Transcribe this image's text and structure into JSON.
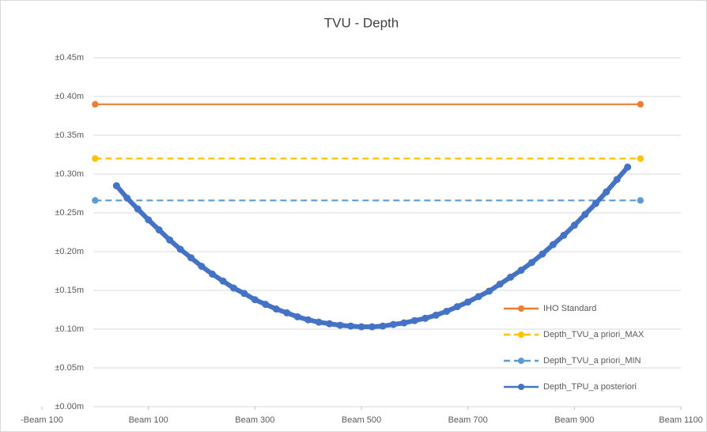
{
  "chart_data": {
    "type": "scatter",
    "title": "TVU - Depth",
    "xlim": [
      -100,
      1100
    ],
    "xticks": [
      {
        "value": -100,
        "label": "-Beam 100"
      },
      {
        "value": 100,
        "label": "Beam 100"
      },
      {
        "value": 300,
        "label": "Beam 300"
      },
      {
        "value": 500,
        "label": "Beam 500"
      },
      {
        "value": 700,
        "label": "Beam 700"
      },
      {
        "value": 900,
        "label": "Beam 900"
      },
      {
        "value": 1100,
        "label": "Beam 1100"
      }
    ],
    "ylim": [
      0,
      0.45
    ],
    "yticks": [
      {
        "value": 0,
        "label": "±0.00m"
      },
      {
        "value": 0.05,
        "label": "±0.05m"
      },
      {
        "value": 0.1,
        "label": "±0.10m"
      },
      {
        "value": 0.15,
        "label": "±0.15m"
      },
      {
        "value": 0.2,
        "label": "±0.20m"
      },
      {
        "value": 0.25,
        "label": "±0.25m"
      },
      {
        "value": 0.3,
        "label": "±0.30m"
      },
      {
        "value": 0.35,
        "label": "±0.35m"
      },
      {
        "value": 0.4,
        "label": "±0.40m"
      },
      {
        "value": 0.45,
        "label": "±0.45m"
      }
    ],
    "grid": true,
    "legend": "lower right",
    "series": [
      {
        "name": "IHO Standard",
        "color": "#ed7d31",
        "dashed": false,
        "x": [
          0,
          1024
        ],
        "values": [
          0.39,
          0.39
        ]
      },
      {
        "name": "Depth_TVU_a priori_MAX",
        "color": "#ffc000",
        "dashed": true,
        "x": [
          0,
          1024
        ],
        "values": [
          0.32,
          0.32
        ]
      },
      {
        "name": "Depth_TVU_a priori_MIN",
        "color": "#5b9bd5",
        "dashed": true,
        "x": [
          0,
          1024
        ],
        "values": [
          0.266,
          0.266
        ]
      },
      {
        "name": "Depth_TPU_a posteriori",
        "color": "#4472c4",
        "dashed": false,
        "x": [
          40,
          60,
          80,
          100,
          120,
          140,
          160,
          180,
          200,
          220,
          240,
          260,
          280,
          300,
          320,
          340,
          360,
          380,
          400,
          420,
          440,
          460,
          480,
          500,
          520,
          540,
          560,
          580,
          600,
          620,
          640,
          660,
          680,
          700,
          720,
          740,
          760,
          780,
          800,
          820,
          840,
          860,
          880,
          900,
          920,
          940,
          960,
          980,
          1000
        ],
        "values": [
          0.285,
          0.269,
          0.255,
          0.241,
          0.228,
          0.215,
          0.203,
          0.192,
          0.181,
          0.171,
          0.162,
          0.153,
          0.146,
          0.138,
          0.132,
          0.126,
          0.121,
          0.116,
          0.112,
          0.109,
          0.107,
          0.105,
          0.104,
          0.103,
          0.103,
          0.104,
          0.106,
          0.108,
          0.111,
          0.114,
          0.118,
          0.123,
          0.129,
          0.135,
          0.142,
          0.149,
          0.158,
          0.167,
          0.176,
          0.186,
          0.197,
          0.209,
          0.221,
          0.234,
          0.248,
          0.262,
          0.277,
          0.293,
          0.309
        ]
      }
    ]
  }
}
